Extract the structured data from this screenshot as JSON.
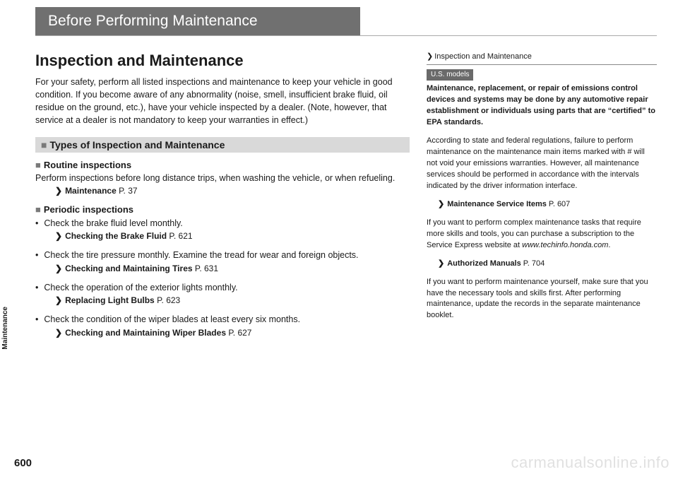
{
  "pageNumber": "600",
  "sideTab": "Maintenance",
  "header": "Before Performing Maintenance",
  "main": {
    "title": "Inspection and Maintenance",
    "intro": "For your safety, perform all listed inspections and maintenance to keep your vehicle in good condition. If you become aware of any abnormality (noise, smell, insufficient brake fluid, oil residue on the ground, etc.), have your vehicle inspected by a dealer. (Note, however, that service at a dealer is not mandatory to keep your warranties in effect.)",
    "sectionTitle": "Types of Inspection and Maintenance",
    "routine": {
      "heading": "Routine inspections",
      "text": "Perform inspections before long distance trips, when washing the vehicle, or when refueling.",
      "refLabel": "Maintenance",
      "refPage": "P. 37"
    },
    "periodic": {
      "heading": "Periodic inspections",
      "items": [
        {
          "text": "Check the brake fluid level monthly.",
          "refLabel": "Checking the Brake Fluid",
          "refPage": "P. 621"
        },
        {
          "text": "Check the tire pressure monthly. Examine the tread for wear and foreign objects.",
          "refLabel": "Checking and Maintaining Tires",
          "refPage": "P. 631"
        },
        {
          "text": "Check the operation of the exterior lights monthly.",
          "refLabel": "Replacing Light Bulbs",
          "refPage": "P. 623"
        },
        {
          "text": "Check the condition of the wiper blades at least every six months.",
          "refLabel": "Checking and Maintaining Wiper Blades",
          "refPage": "P. 627"
        }
      ]
    }
  },
  "side": {
    "heading": "Inspection and Maintenance",
    "badge": "U.S. models",
    "boldPara": "Maintenance, replacement, or repair of emissions control devices and systems may be done by any automotive repair establishment or individuals using parts that are “certified” to EPA standards.",
    "para1": "According to state and federal regulations, failure to perform maintenance on the maintenance main items marked with # will not void your emissions warranties. However, all maintenance services should be performed in accordance with the intervals indicated by the driver information interface.",
    "ref1Label": "Maintenance Service Items",
    "ref1Page": "P. 607",
    "para2_a": "If you want to perform complex maintenance tasks that require more skills and tools, you can purchase a subscription to the Service Express website at ",
    "para2_url": "www.techinfo.honda.com",
    "para2_b": ".",
    "ref2Label": "Authorized Manuals",
    "ref2Page": "P. 704",
    "para3": "If you want to perform maintenance yourself, make sure that you have the necessary tools and skills first. After performing maintenance, update the records in the separate maintenance booklet."
  },
  "watermark": "carmanualsonline.info"
}
